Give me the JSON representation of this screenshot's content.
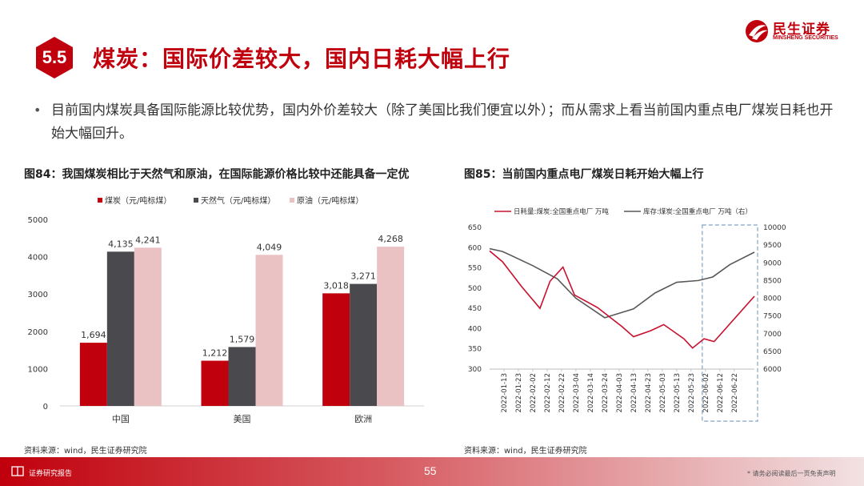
{
  "header": {
    "section_number": "5.5",
    "title": "煤炭：国际价差较大，国内日耗大幅上行",
    "logo_cn": "民生证券",
    "logo_en": "MINSHENG SECURITIES"
  },
  "bullet": {
    "text": "目前国内煤炭具备国际能源比较优势，国内外价差较大（除了美国比我们便宜以外）；而从需求上看当前国内重点电厂煤炭日耗也开始大幅回升。"
  },
  "figure84": {
    "title": "图84：我国煤炭相比于天然气和原油，在国际能源价格比较中还能具备一定优",
    "source": "资料来源：wind，民生证券研究院"
  },
  "figure85": {
    "title": "图85：当前国内重点电厂煤炭日耗开始大幅上行",
    "source": "资料来源：wind，民生证券研究院"
  },
  "footer": {
    "label": "证券研究报告",
    "page_number": "55",
    "disclaimer": "* 请务必阅读最后一页免责声明"
  },
  "colors": {
    "brand_red": "#c0000c",
    "coal_bar": "#c0000c",
    "gas_bar": "#4a4a4e",
    "oil_bar": "#ebc2c4",
    "daily_line": "#c8102e",
    "stock_line": "#595959",
    "highlight_box": "#7fa3c8"
  },
  "chart_data": [
    {
      "type": "bar",
      "categories": [
        "中国",
        "美国",
        "欧洲"
      ],
      "series": [
        {
          "name": "煤炭（元/吨标煤）",
          "values": [
            1694,
            1212,
            3018
          ]
        },
        {
          "name": "天然气（元/吨标煤）",
          "values": [
            4135,
            1579,
            3271
          ]
        },
        {
          "name": "原油（元/吨标煤）",
          "values": [
            4241,
            4049,
            4268
          ]
        }
      ],
      "data_labels": [
        [
          "1,694",
          "1,212",
          "3,018"
        ],
        [
          "4,135",
          "1,579",
          "3,271"
        ],
        [
          "4,241",
          "4,049",
          "4,268"
        ]
      ],
      "ylim": [
        0,
        5000
      ],
      "yticks": [
        "0",
        "1000",
        "2000",
        "3000",
        "4000",
        "5000"
      ],
      "legend_position": "top",
      "grid": false
    },
    {
      "type": "line",
      "x": [
        "2022-01-13",
        "2022-01-23",
        "2022-02-02",
        "2022-02-12",
        "2022-02-22",
        "2022-03-04",
        "2022-03-14",
        "2022-03-24",
        "2022-04-03",
        "2022-04-13",
        "2022-04-23",
        "2022-05-03",
        "2022-05-13",
        "2022-05-23",
        "2022-06-02",
        "2022-06-12",
        "2022-06-22"
      ],
      "series": [
        {
          "name": "日耗量:煤炭:全国重点电厂 万吨",
          "axis": "left",
          "points": [
            [
              "2022-01-03",
              592
            ],
            [
              "2022-01-12",
              565
            ],
            [
              "2022-01-25",
              505
            ],
            [
              "2022-02-07",
              450
            ],
            [
              "2022-02-14",
              517
            ],
            [
              "2022-02-23",
              552
            ],
            [
              "2022-03-03",
              483
            ],
            [
              "2022-03-19",
              452
            ],
            [
              "2022-04-05",
              405
            ],
            [
              "2022-04-13",
              380
            ],
            [
              "2022-04-25",
              395
            ],
            [
              "2022-05-04",
              410
            ],
            [
              "2022-05-18",
              375
            ],
            [
              "2022-05-24",
              352
            ],
            [
              "2022-06-01",
              375
            ],
            [
              "2022-06-08",
              368
            ],
            [
              "2022-07-06",
              480
            ]
          ]
        },
        {
          "name": "库存:煤炭:全国重点电厂 万吨（右）",
          "axis": "right",
          "points": [
            [
              "2022-01-03",
              9400
            ],
            [
              "2022-01-12",
              9320
            ],
            [
              "2022-02-02",
              8920
            ],
            [
              "2022-02-19",
              8550
            ],
            [
              "2022-03-04",
              8000
            ],
            [
              "2022-03-24",
              7450
            ],
            [
              "2022-04-13",
              7700
            ],
            [
              "2022-04-28",
              8150
            ],
            [
              "2022-05-13",
              8450
            ],
            [
              "2022-05-28",
              8500
            ],
            [
              "2022-06-07",
              8600
            ],
            [
              "2022-06-19",
              8950
            ],
            [
              "2022-07-06",
              9300
            ]
          ]
        }
      ],
      "ylim_left": [
        300,
        650
      ],
      "yticks_left": [
        "300",
        "350",
        "400",
        "450",
        "500",
        "550",
        "600",
        "650"
      ],
      "ylim_right": [
        6000,
        10000
      ],
      "yticks_right": [
        "6000",
        "6500",
        "7000",
        "7500",
        "8000",
        "8500",
        "9000",
        "9500",
        "10000"
      ],
      "highlight_range": [
        "2022-06-02",
        "2022-07-06"
      ],
      "legend_position": "top",
      "grid": false
    }
  ]
}
